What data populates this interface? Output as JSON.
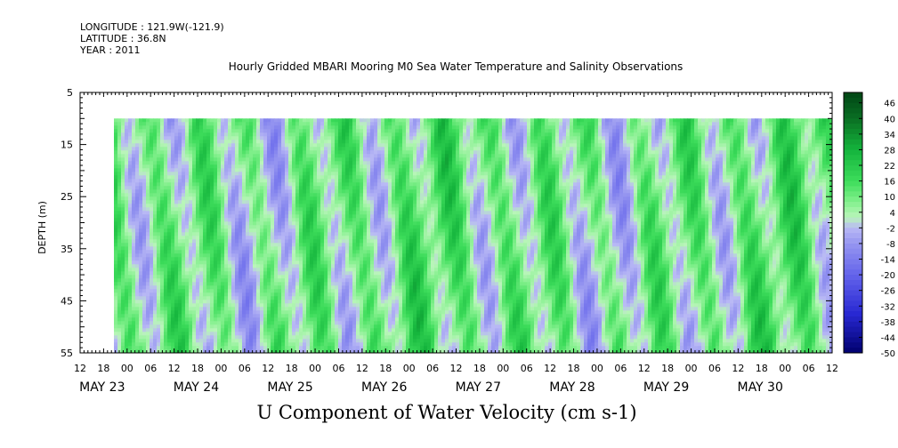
{
  "meta": {
    "longitude": "LONGITUDE : 121.9W(-121.9)",
    "latitude": "LATITUDE : 36.8N",
    "year": "YEAR : 2011"
  },
  "chart_data": {
    "type": "heatmap",
    "title": "Hourly Gridded MBARI Mooring M0 Sea Water Temperature and Salinity Observations",
    "bottom_title": "U Component of Water Velocity (cm s-1)",
    "ylabel": "DEPTH (m)",
    "y_ticks": [
      5,
      15,
      25,
      35,
      45,
      55
    ],
    "ylim": [
      5,
      55
    ],
    "y_data_range": [
      10,
      55
    ],
    "y_inverted": true,
    "x_hour_ticks": [
      "12",
      "18",
      "00",
      "06",
      "12",
      "18",
      "00",
      "06",
      "12",
      "18",
      "00",
      "06",
      "12",
      "18",
      "00",
      "06",
      "12",
      "18",
      "00",
      "06",
      "12",
      "18",
      "00",
      "06",
      "12",
      "18",
      "00",
      "06",
      "12",
      "18",
      "00",
      "06",
      "12"
    ],
    "x_date_labels": [
      "MAY 23",
      "MAY 24",
      "MAY 25",
      "MAY 26",
      "MAY 27",
      "MAY 28",
      "MAY 29",
      "MAY 30"
    ],
    "x_range": [
      "2011-05-23 12:00",
      "2011-05-30 12:00"
    ],
    "x_data_start": "2011-05-23 18:00",
    "colorbar": {
      "min": -50,
      "max": 50,
      "labels": [
        "46",
        "40",
        "34",
        "28",
        "22",
        "16",
        "10",
        "4",
        "-2",
        "-8",
        "-14",
        "-20",
        "-26",
        "-32",
        "-38",
        "-44",
        "-50"
      ]
    },
    "colors": {
      "positive": "#00c832",
      "neutral_pos": "#b4f0b4",
      "neutral_neg": "#b4b4f0",
      "negative": "#3232dc"
    }
  }
}
